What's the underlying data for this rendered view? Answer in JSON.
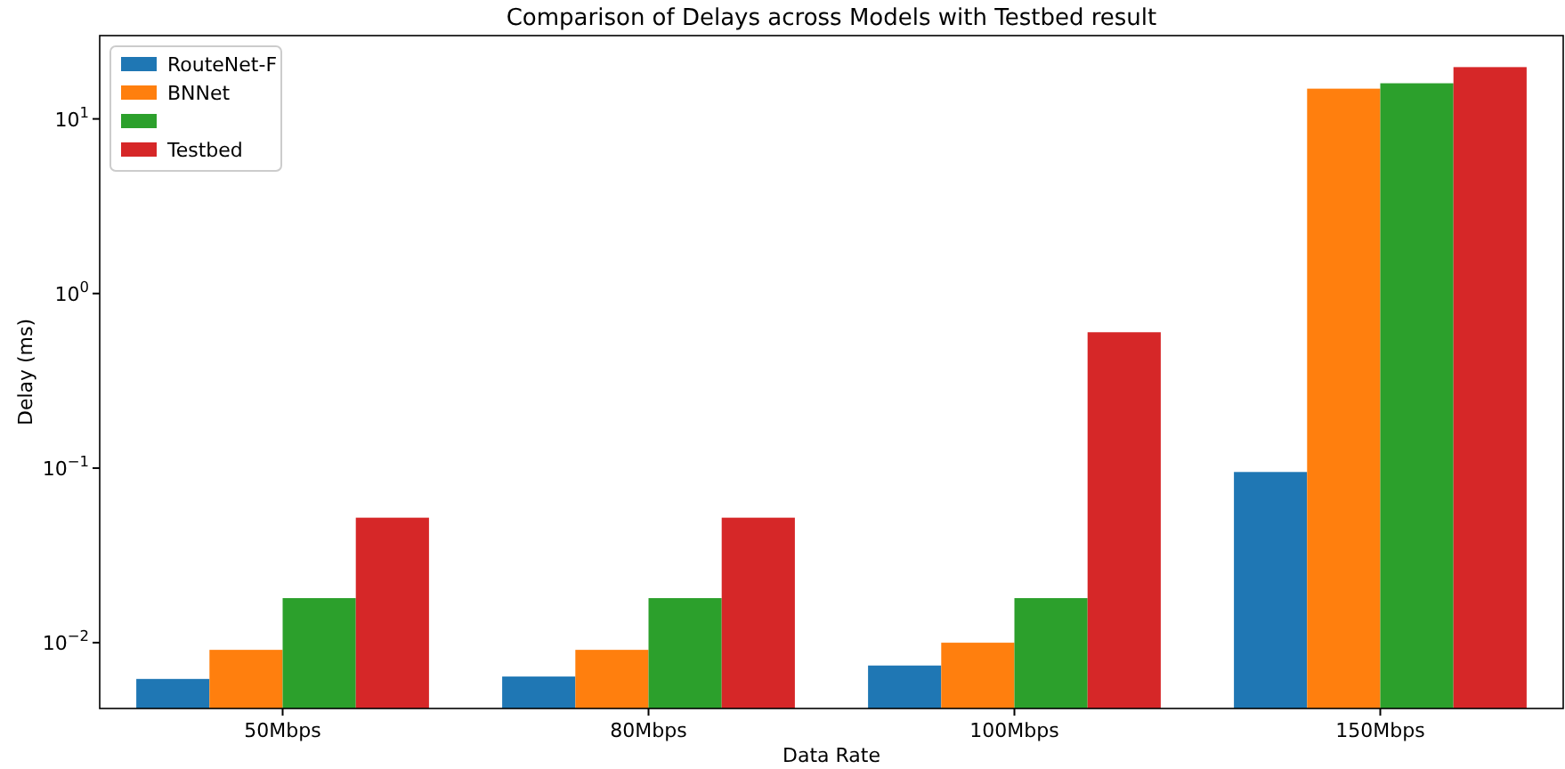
{
  "chart_data": {
    "type": "bar",
    "title": "Comparison of Delays across Models with Testbed result",
    "xlabel": "Data Rate",
    "ylabel": "Delay (ms)",
    "categories": [
      "50Mbps",
      "80Mbps",
      "100Mbps",
      "150Mbps"
    ],
    "series": [
      {
        "name": "RouteNet-F",
        "color": "#1f77b4",
        "values": [
          0.0062,
          0.0064,
          0.0074,
          0.095
        ]
      },
      {
        "name": "BNNet",
        "color": "#ff7f0e",
        "values": [
          0.0091,
          0.0091,
          0.01,
          14.9
        ]
      },
      {
        "color": "#2ca02c",
        "values": [
          0.018,
          0.018,
          0.018,
          16
        ]
      },
      {
        "name": "Testbed",
        "color": "#d62728",
        "values": [
          0.052,
          0.052,
          0.6,
          19.8
        ]
      }
    ],
    "log": true,
    "ylim": [
      0.0042,
      30
    ],
    "yticks": [
      {
        "value": 0.01,
        "label": "10$^{−2}$"
      },
      {
        "value": 0.1,
        "label": "10$^{−1}$"
      },
      {
        "value": 1,
        "label": "10$^{0}$"
      },
      {
        "value": 10,
        "label": "10$^{1}$"
      }
    ],
    "legend": "top left"
  }
}
